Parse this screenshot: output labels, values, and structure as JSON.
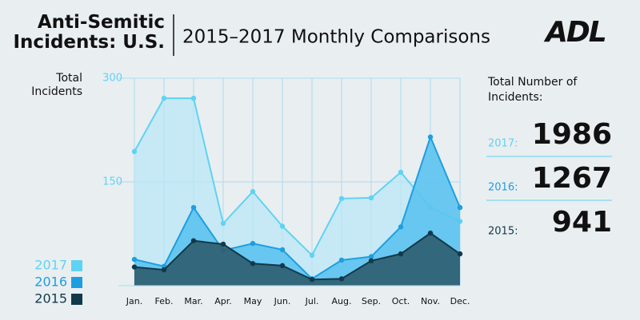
{
  "chart_data": {
    "type": "area",
    "title": "Anti-Semitic Incidents: U.S.",
    "subtitle": "2015–2017 Monthly Comparisons",
    "logo": "ADL",
    "y_label": "Total Incidents",
    "categories": [
      "Jan.",
      "Feb.",
      "Mar.",
      "Apr.",
      "May",
      "Jun.",
      "Jul.",
      "Aug.",
      "Sep.",
      "Oct.",
      "Nov.",
      "Dec."
    ],
    "series": [
      {
        "name": "2017",
        "color": "#5fd3f3",
        "fill": "#b9e7f5",
        "values": [
          194,
          271,
          271,
          90,
          136,
          86,
          44,
          126,
          127,
          164,
          113,
          93
        ]
      },
      {
        "name": "2016",
        "color": "#1e9ee0",
        "fill": "#5cc3ef",
        "values": [
          38,
          28,
          113,
          51,
          61,
          52,
          10,
          37,
          42,
          85,
          215,
          113
        ]
      },
      {
        "name": "2015",
        "color": "#12394a",
        "fill": "#2e5c6e",
        "values": [
          27,
          23,
          65,
          60,
          32,
          29,
          9,
          10,
          36,
          46,
          76,
          46
        ]
      }
    ],
    "ylim": [
      0,
      300
    ],
    "yticks": [
      150,
      300
    ],
    "grid": true,
    "totals_title": "Total Number of Incidents:",
    "totals": [
      {
        "label": "2017:",
        "value": 1986
      },
      {
        "label": "2016:",
        "value": 1267
      },
      {
        "label": "2015:",
        "value": 941
      }
    ]
  }
}
